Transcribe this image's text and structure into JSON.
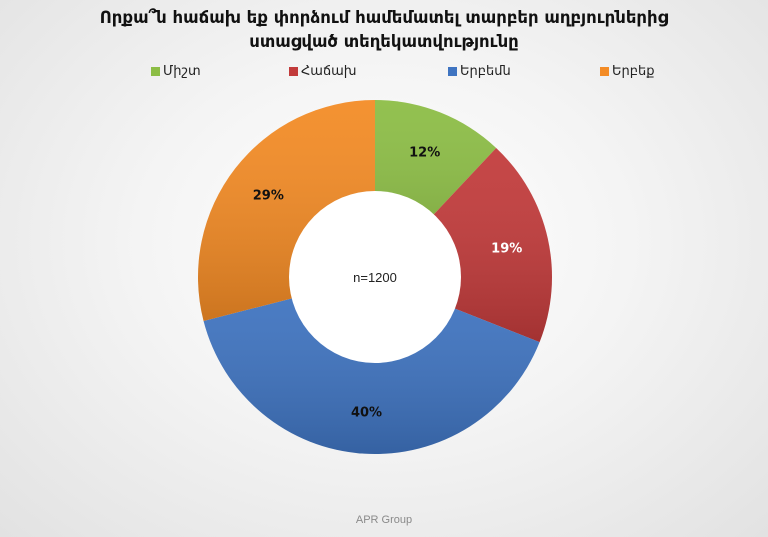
{
  "chart_data": {
    "type": "pie",
    "donut": true,
    "title_lines": [
      "Որքա՞ն հաճախ եք փորձում համեմատել տարբեր աղբյուրներից",
      "ստացված տեղեկատվությունը"
    ],
    "categories": [
      "Միշտ",
      "Հաճախ",
      "Երբեմն",
      "Երբեք"
    ],
    "values": [
      12,
      19,
      40,
      29
    ],
    "labels": [
      "12%",
      "19%",
      "40%",
      "29%"
    ],
    "colors": [
      "#8cbd45",
      "#c23b3b",
      "#3f74c1",
      "#f38b25"
    ],
    "label_colors": [
      "#111111",
      "#ffffff",
      "#111111",
      "#111111"
    ],
    "center_label": "n=1200",
    "legend_position": "top"
  },
  "footer": "APR Group"
}
